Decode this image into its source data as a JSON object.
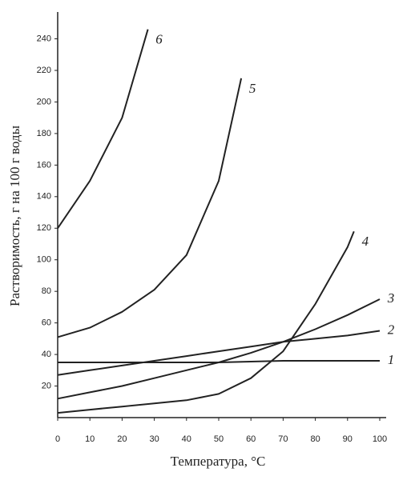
{
  "chart_data": {
    "type": "line",
    "x_label": "Температура, °С",
    "y_label": "Растворимость, г на 100 г воды",
    "xlim": [
      0,
      100
    ],
    "xticks": [
      0,
      10,
      20,
      30,
      40,
      50,
      60,
      70,
      80,
      90,
      100
    ],
    "ylim": [
      0,
      257
    ],
    "yticks": [
      20,
      40,
      60,
      80,
      100,
      120,
      140,
      160,
      180,
      200,
      220,
      240
    ],
    "color": "#222222",
    "series": [
      {
        "name": "1",
        "x": [
          0,
          10,
          20,
          30,
          40,
          50,
          60,
          70,
          80,
          90,
          100
        ],
        "values": [
          35,
          35,
          35,
          35,
          35,
          35,
          35.5,
          36,
          36,
          36,
          36
        ]
      },
      {
        "name": "2",
        "x": [
          0,
          10,
          20,
          30,
          40,
          50,
          60,
          70,
          80,
          90,
          100
        ],
        "values": [
          27,
          30,
          33,
          36,
          39,
          42,
          45,
          48,
          50,
          52,
          55
        ]
      },
      {
        "name": "3",
        "x": [
          0,
          10,
          20,
          30,
          40,
          50,
          60,
          70,
          80,
          90,
          100
        ],
        "values": [
          12,
          16,
          20,
          25,
          30,
          35,
          41,
          48,
          56,
          65,
          75
        ]
      },
      {
        "name": "4",
        "x": [
          0,
          10,
          20,
          30,
          40,
          50,
          60,
          70,
          80,
          90,
          92
        ],
        "values": [
          3,
          5,
          7,
          9,
          11,
          15,
          25,
          42,
          72,
          108,
          118
        ]
      },
      {
        "name": "5",
        "x": [
          0,
          10,
          20,
          30,
          40,
          50,
          57
        ],
        "values": [
          51,
          57,
          67,
          81,
          103,
          150,
          215
        ]
      },
      {
        "name": "6",
        "x": [
          0,
          10,
          20,
          28
        ],
        "values": [
          120,
          150,
          190,
          246
        ]
      }
    ]
  }
}
